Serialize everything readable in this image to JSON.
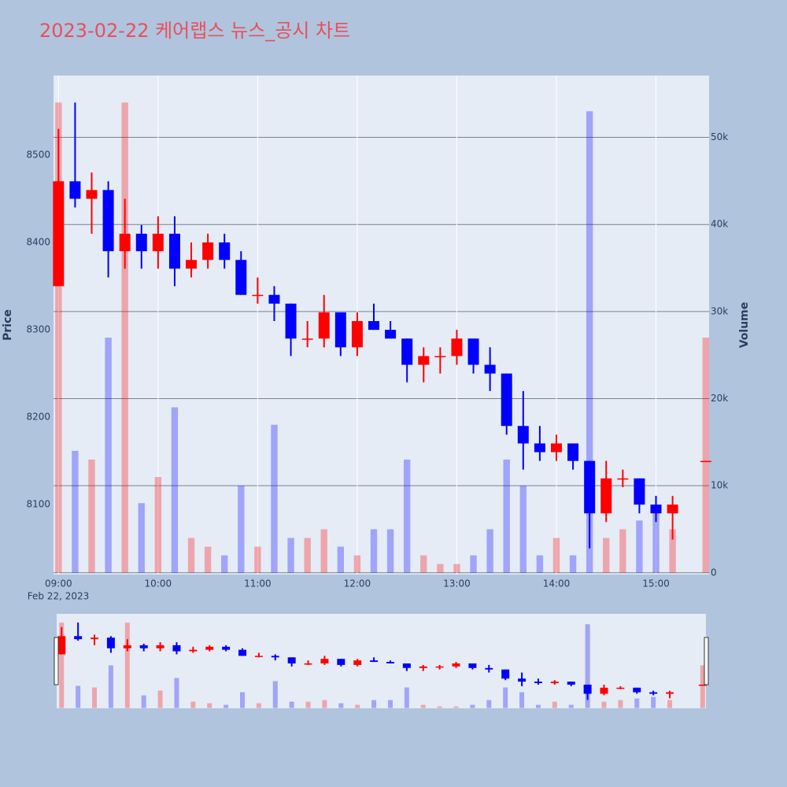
{
  "chart_data": {
    "type": "candlestick",
    "title": "2023-02-22 케어랩스 뉴스_공시 차트",
    "x": [
      "2023-02-22 09:00",
      "2023-02-22 09:10",
      "2023-02-22 09:20",
      "2023-02-22 09:30",
      "2023-02-22 09:40",
      "2023-02-22 09:50",
      "2023-02-22 10:00",
      "2023-02-22 10:10",
      "2023-02-22 10:20",
      "2023-02-22 10:30",
      "2023-02-22 10:40",
      "2023-02-22 10:50",
      "2023-02-22 11:00",
      "2023-02-22 11:10",
      "2023-02-22 11:20",
      "2023-02-22 11:30",
      "2023-02-22 11:40",
      "2023-02-22 11:50",
      "2023-02-22 12:00",
      "2023-02-22 12:10",
      "2023-02-22 12:20",
      "2023-02-22 12:30",
      "2023-02-22 12:40",
      "2023-02-22 12:50",
      "2023-02-22 13:00",
      "2023-02-22 13:10",
      "2023-02-22 13:20",
      "2023-02-22 13:30",
      "2023-02-22 13:40",
      "2023-02-22 13:50",
      "2023-02-22 14:00",
      "2023-02-22 14:10",
      "2023-02-22 14:20",
      "2023-02-22 14:30",
      "2023-02-22 14:40",
      "2023-02-22 14:50",
      "2023-02-22 15:00",
      "2023-02-22 15:10",
      "2023-02-22 15:30"
    ],
    "open": [
      8350,
      8470,
      8450,
      8460,
      8390,
      8410,
      8390,
      8410,
      8370,
      8380,
      8400,
      8380,
      8340,
      8340,
      8330,
      8290,
      8290,
      8320,
      8280,
      8310,
      8300,
      8290,
      8260,
      8270,
      8270,
      8290,
      8260,
      8250,
      8190,
      8170,
      8160,
      8170,
      8150,
      8090,
      8130,
      8130,
      8100,
      8090,
      8150
    ],
    "high": [
      8530,
      8560,
      8480,
      8470,
      8450,
      8420,
      8430,
      8430,
      8400,
      8410,
      8410,
      8390,
      8360,
      8350,
      8330,
      8310,
      8340,
      8320,
      8320,
      8330,
      8310,
      8290,
      8280,
      8280,
      8300,
      8290,
      8280,
      8250,
      8230,
      8190,
      8180,
      8170,
      8150,
      8150,
      8140,
      8130,
      8110,
      8110,
      8150
    ],
    "low": [
      8350,
      8440,
      8410,
      8360,
      8370,
      8370,
      8370,
      8350,
      8360,
      8370,
      8370,
      8340,
      8330,
      8310,
      8270,
      8280,
      8280,
      8270,
      8270,
      8300,
      8290,
      8240,
      8240,
      8250,
      8260,
      8250,
      8230,
      8180,
      8140,
      8150,
      8150,
      8140,
      8050,
      8080,
      8120,
      8090,
      8080,
      8060,
      8150
    ],
    "close": [
      8470,
      8450,
      8460,
      8390,
      8410,
      8390,
      8410,
      8370,
      8380,
      8400,
      8380,
      8340,
      8340,
      8330,
      8290,
      8290,
      8320,
      8280,
      8310,
      8300,
      8290,
      8260,
      8270,
      8270,
      8290,
      8260,
      8250,
      8190,
      8170,
      8160,
      8170,
      8150,
      8090,
      8130,
      8130,
      8100,
      8090,
      8100,
      8150
    ],
    "volume": [
      54000,
      14000,
      13000,
      27000,
      54000,
      8000,
      11000,
      19000,
      4000,
      3000,
      2000,
      10000,
      3000,
      17000,
      4000,
      4000,
      5000,
      3000,
      2000,
      5000,
      5000,
      13000,
      2000,
      1000,
      1000,
      2000,
      5000,
      13000,
      10000,
      2000,
      4000,
      2000,
      53000,
      4000,
      5000,
      6000,
      7000,
      5000,
      27000
    ],
    "increasing_color": "#ff0000",
    "decreasing_color": "#0000ff",
    "ylim": [
      8020,
      8591
    ],
    "yticks": [
      8100,
      8200,
      8300,
      8400,
      8500
    ],
    "y2lim": [
      -200,
      57100
    ],
    "y2ticks": [
      0,
      {
        "value": 10000,
        "label": "10k"
      },
      {
        "value": 20000,
        "label": "20k"
      },
      {
        "value": 30000,
        "label": "30k"
      },
      {
        "value": 40000,
        "label": "40k"
      },
      {
        "value": 50000,
        "label": "50k"
      }
    ],
    "xlim": [
      "2023-02-22 08:57",
      "2023-02-22 15:32"
    ],
    "xticks": [
      {
        "value": "2023-02-22 09:00",
        "label": "09:00"
      },
      {
        "value": "2023-02-22 10:00",
        "label": "10:00"
      },
      {
        "value": "2023-02-22 11:00",
        "label": "11:00"
      },
      {
        "value": "2023-02-22 12:00",
        "label": "12:00"
      },
      {
        "value": "2023-02-22 13:00",
        "label": "13:00"
      },
      {
        "value": "2023-02-22 14:00",
        "label": "14:00"
      },
      {
        "value": "2023-02-22 15:00",
        "label": "15:00"
      }
    ],
    "x_date_label": "Feb 22, 2023",
    "yaxis_title": "Price",
    "y2axis_title": "Volume",
    "grid": true,
    "rangeslider": true
  }
}
